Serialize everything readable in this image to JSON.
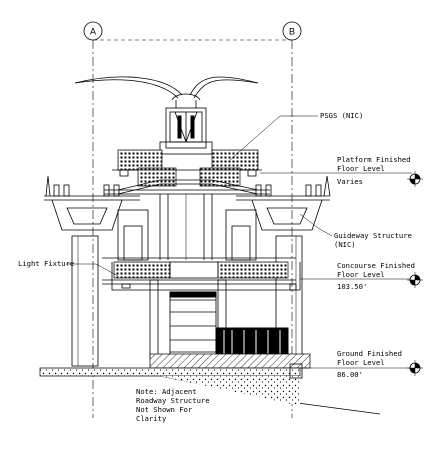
{
  "grid_lines": [
    {
      "id": "A",
      "label": "A"
    },
    {
      "id": "B",
      "label": "B"
    }
  ],
  "annotations": {
    "psgs": "PSGS (NIC)",
    "platform_line1": "Platform Finished",
    "platform_line2": "Floor Level",
    "platform_value": "Varies",
    "guideway_line1": "Guideway Structure",
    "guideway_line2": "(NIC)",
    "light_fixture": "Light Fixture",
    "concourse_line1": "Concourse Finished",
    "concourse_line2": "Floor Level",
    "concourse_value": "103.50'",
    "ground_line1": "Ground Finished",
    "ground_line2": "Floor Level",
    "ground_value": "86.00'"
  },
  "note": {
    "line1": "Note: Adjacent",
    "line2": "Roadway Structure",
    "line3": "Not Shown For",
    "line4": "Clarity"
  }
}
